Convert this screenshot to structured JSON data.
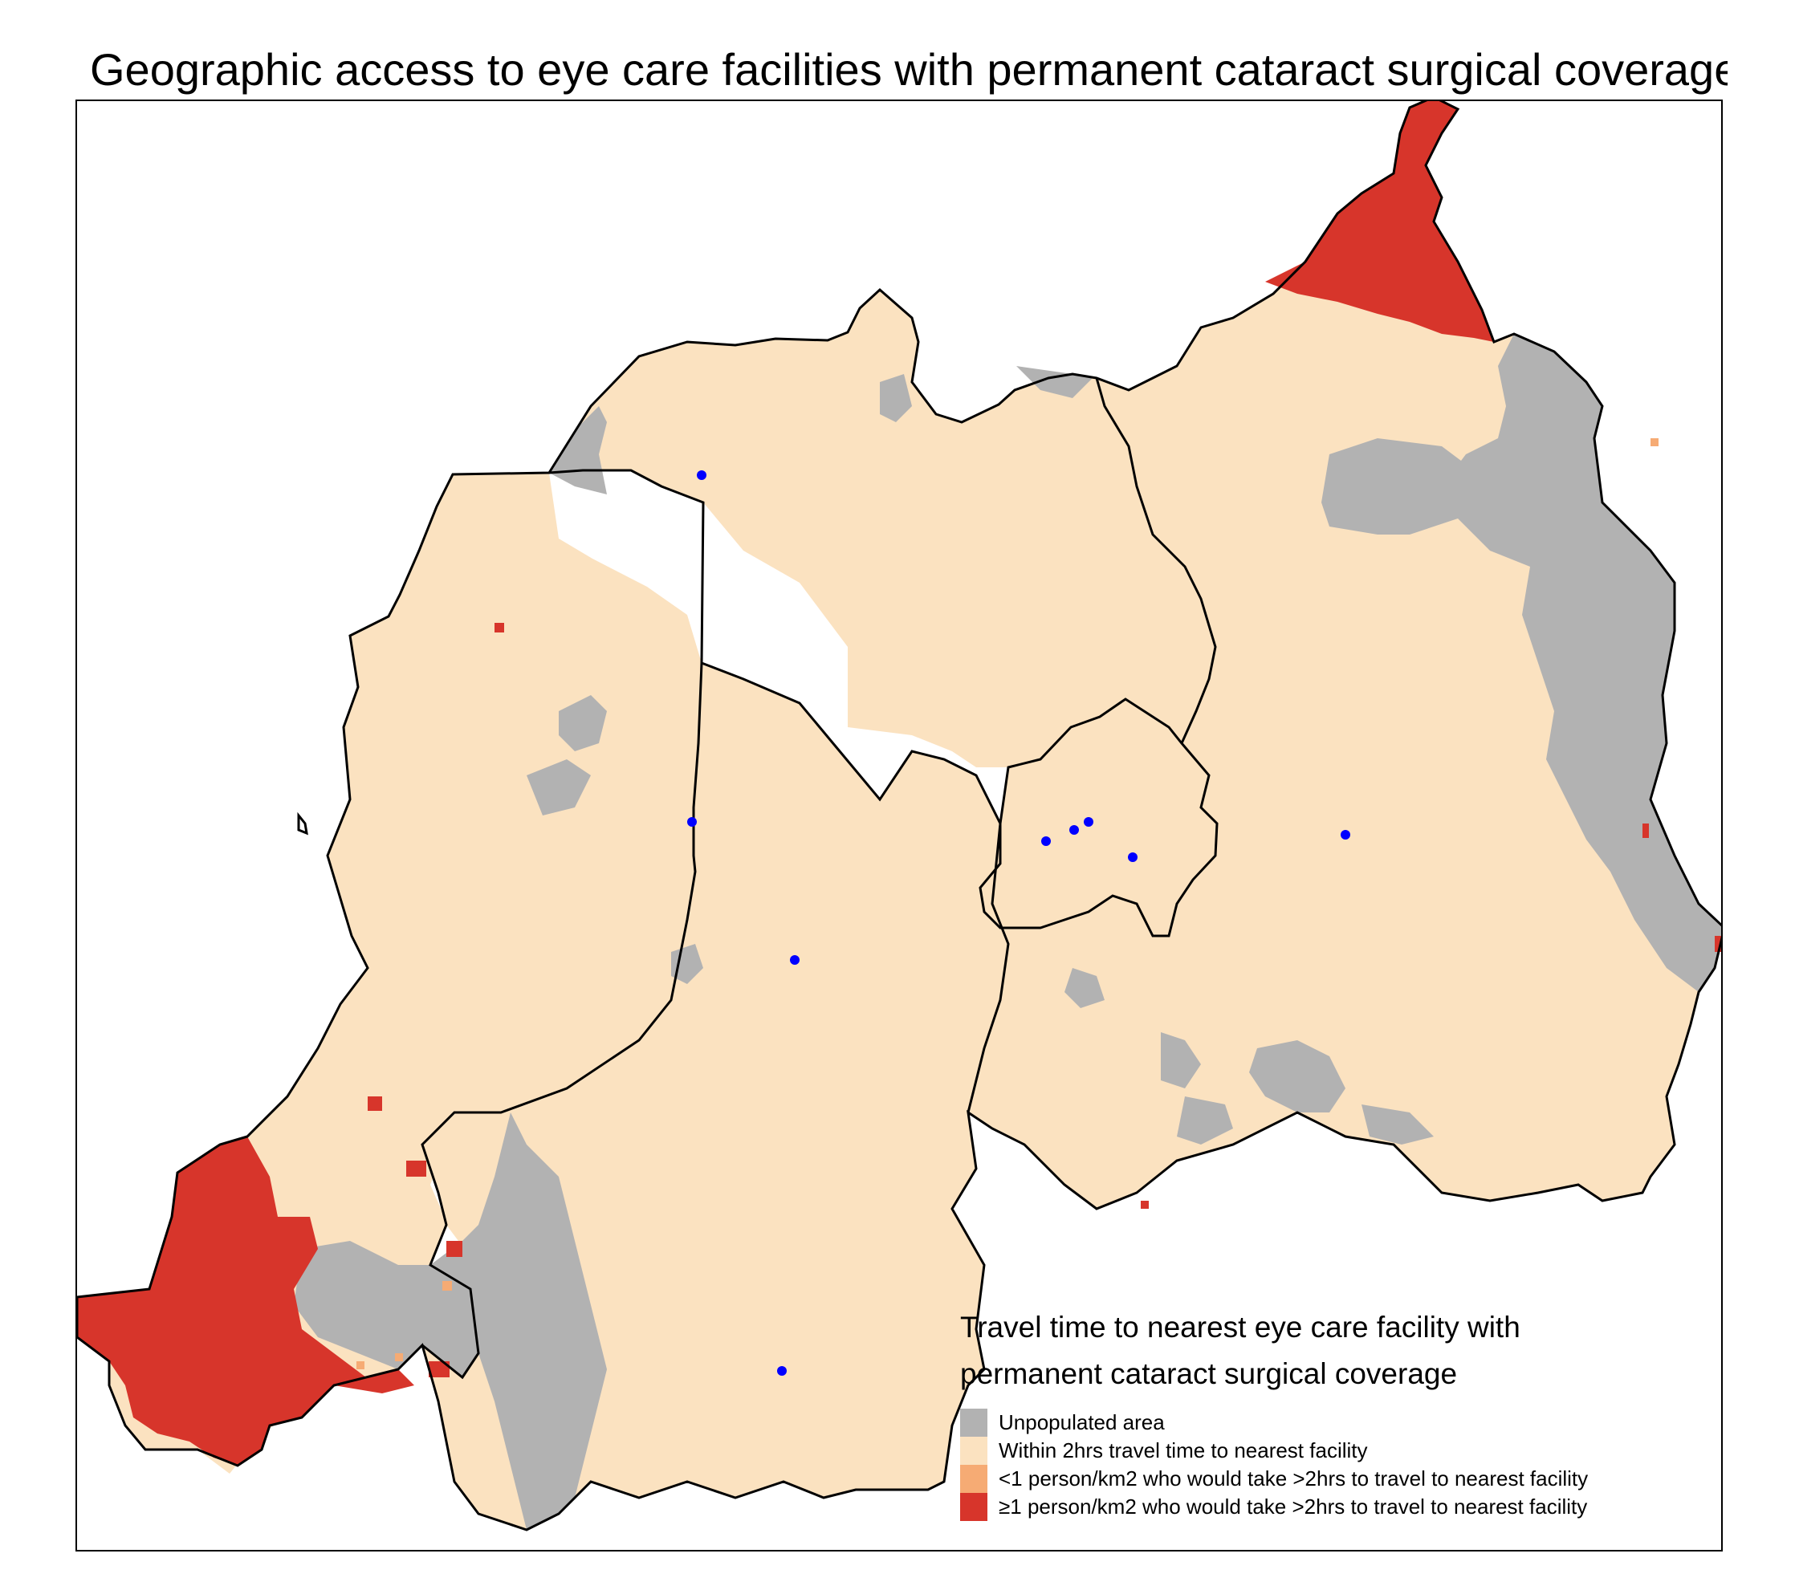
{
  "title": "Geographic access to eye care facilities with permanent cataract surgical coverage",
  "colors": {
    "unpopulated": "#b2b2b2",
    "within_2hrs": "#fbe2c0",
    "low_density_over_2hrs": "#f6ab74",
    "high_density_over_2hrs": "#d7352b",
    "facility": "#0000ff",
    "border": "#000000"
  },
  "legend": {
    "title_line1": "Travel time to nearest eye care facility with",
    "title_line2": "permanent cataract surgical coverage",
    "items": [
      {
        "label": "Unpopulated area",
        "color": "#b2b2b2"
      },
      {
        "label": "Within 2hrs travel time to nearest facility",
        "color": "#fbe2c0"
      },
      {
        "label": "<1 person/km2 who would take >2hrs to travel to nearest facility",
        "color": "#f6ab74"
      },
      {
        "label": "≥1 person/km2 who would take >2hrs to travel to nearest facility",
        "color": "#d7352b"
      }
    ]
  }
}
